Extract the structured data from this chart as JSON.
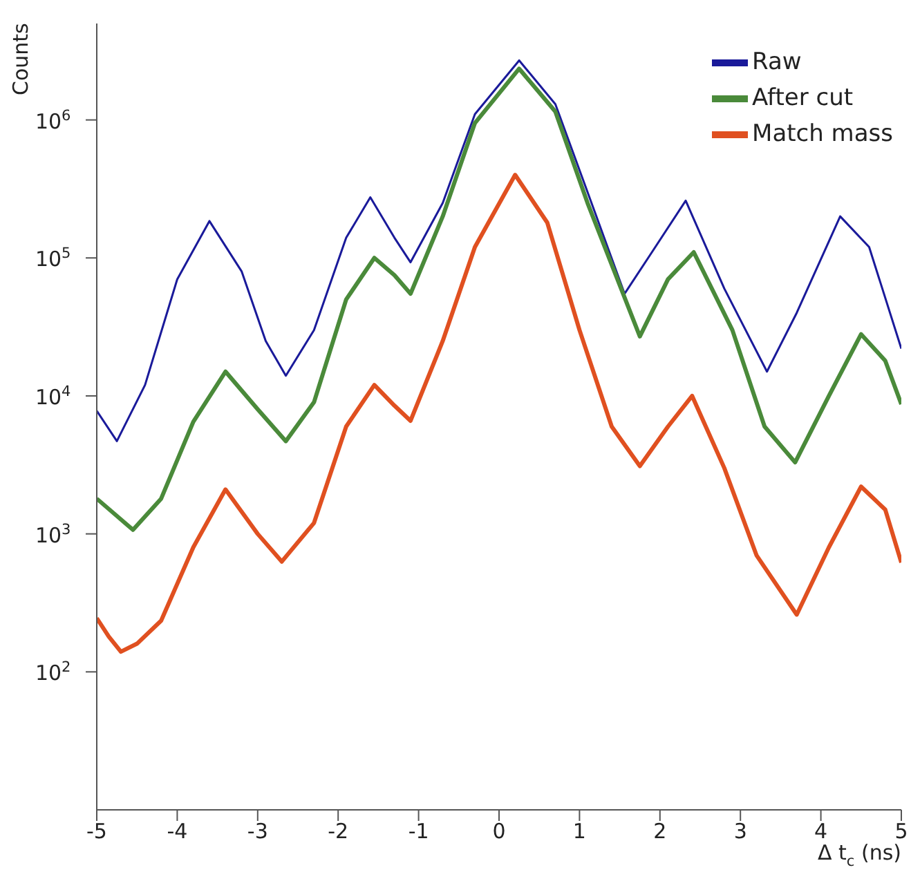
{
  "chart_data": {
    "type": "line",
    "xlabel": "Δ t$_{c}$ (ns)",
    "ylabel": "Counts",
    "log": "y",
    "grid": false,
    "legend": "top right",
    "marker": "none",
    "line_style": "solid",
    "xlim": [
      -5,
      5
    ],
    "xticks": [
      -5,
      -4,
      -3,
      -2,
      -1,
      0,
      1,
      2,
      3,
      4,
      5
    ],
    "ylim": [
      10,
      5000000
    ],
    "yticks": [
      {
        "value": 100,
        "label": "10$^{2}$"
      },
      {
        "value": 1000,
        "label": "10$^{3}$"
      },
      {
        "value": 10000,
        "label": "10$^{4}$"
      },
      {
        "value": 100000,
        "label": "10$^{5}$"
      },
      {
        "value": 1000000,
        "label": "10$^{6}$"
      }
    ],
    "series": [
      {
        "name": "Raw",
        "color": "#1a1a9a",
        "x": [
          -5,
          -4.75,
          -4.4,
          -4,
          -3.6,
          -3.2,
          -2.9,
          -2.65,
          -2.3,
          -1.9,
          -1.6,
          -1.3,
          -1.1,
          -0.7,
          -0.3,
          0.25,
          0.7,
          1.1,
          1.56,
          1.9,
          2.32,
          2.8,
          3.33,
          3.7,
          4.24,
          4.6,
          5
        ],
        "values": [
          7800,
          4700,
          12000,
          70000,
          185000,
          80000,
          25000,
          14000,
          30000,
          140000,
          275000,
          140000,
          93000,
          250000,
          1100000,
          2700000,
          1300000,
          300000,
          55000,
          110000,
          260000,
          60000,
          15000,
          40000,
          200000,
          120000,
          22000
        ]
      },
      {
        "name": "After cut",
        "color": "#4a8a3a",
        "x": [
          -5,
          -4.55,
          -4.2,
          -3.8,
          -3.4,
          -3,
          -2.65,
          -2.3,
          -1.9,
          -1.55,
          -1.3,
          -1.1,
          -0.7,
          -0.3,
          0.25,
          0.7,
          1.1,
          1.75,
          2.1,
          2.42,
          2.9,
          3.3,
          3.68,
          4.1,
          4.5,
          4.8,
          5
        ],
        "values": [
          1800,
          1070,
          1800,
          6500,
          15000,
          8000,
          4700,
          9000,
          50000,
          100000,
          75000,
          55000,
          200000,
          950000,
          2350000,
          1150000,
          250000,
          27000,
          70000,
          110000,
          30000,
          6000,
          3300,
          10000,
          28000,
          18000,
          8700
        ]
      },
      {
        "name": "Match mass",
        "color": "#e05020",
        "x": [
          -5,
          -4.85,
          -4.7,
          -4.5,
          -4.2,
          -3.8,
          -3.4,
          -3,
          -2.7,
          -2.3,
          -1.9,
          -1.55,
          -1.3,
          -1.1,
          -0.7,
          -0.3,
          0.2,
          0.6,
          1,
          1.4,
          1.75,
          2.1,
          2.4,
          2.8,
          3.2,
          3.7,
          4.1,
          4.5,
          4.8,
          5
        ],
        "values": [
          245,
          180,
          140,
          160,
          235,
          800,
          2100,
          1000,
          630,
          1200,
          6000,
          12000,
          8500,
          6600,
          25000,
          120000,
          400000,
          180000,
          30000,
          6000,
          3100,
          6000,
          10000,
          3000,
          700,
          260,
          800,
          2200,
          1500,
          620
        ]
      }
    ]
  }
}
